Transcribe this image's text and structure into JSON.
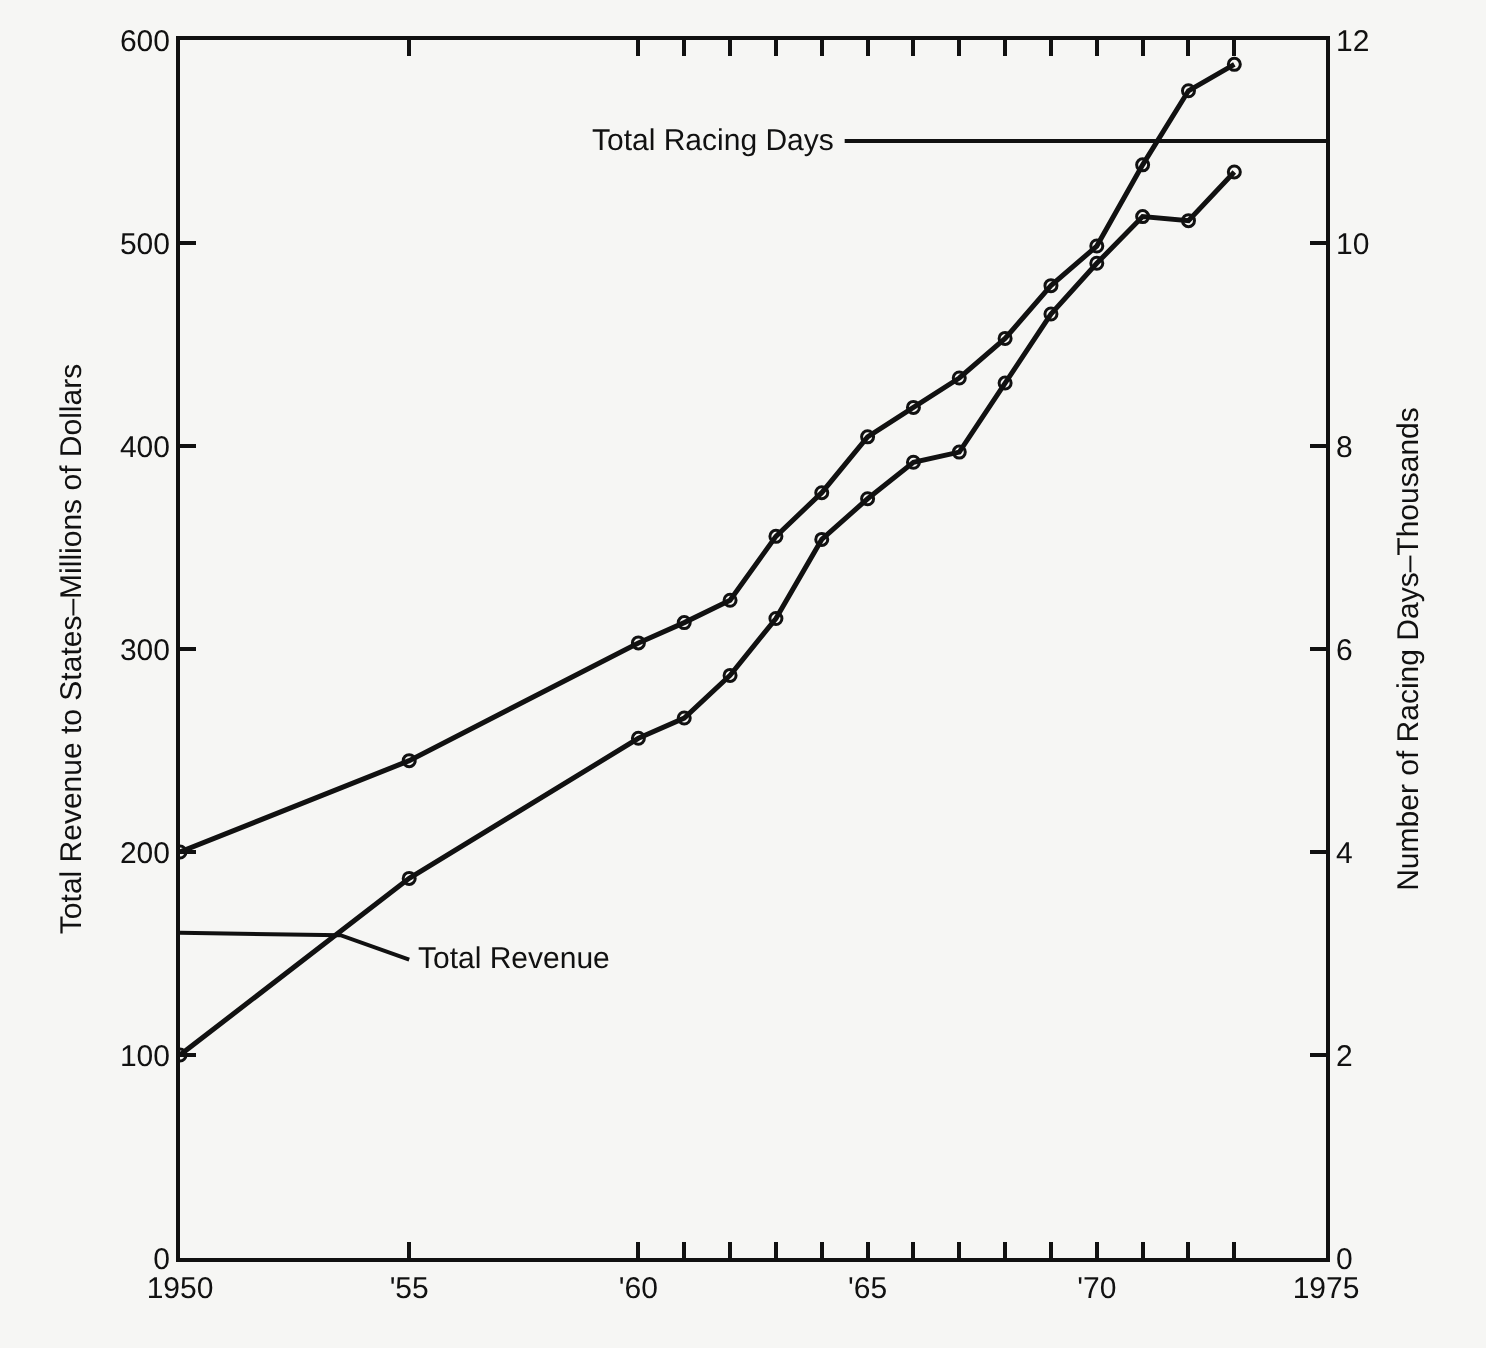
{
  "chart_data": {
    "type": "line",
    "ylabel": "Total Revenue to States–Millions of Dollars",
    "y2label": "Number of Racing Days–Thousands",
    "x": [
      1950,
      1955,
      1960,
      1961,
      1962,
      1963,
      1964,
      1965,
      1966,
      1967,
      1968,
      1969,
      1970,
      1971,
      1972,
      1973
    ],
    "series": [
      {
        "color": "#111111",
        "values": [
          100,
          187,
          256,
          266,
          287,
          315,
          354,
          374,
          392,
          397,
          431,
          465,
          490,
          513,
          511,
          535
        ]
      },
      {
        "color": "#111111",
        "axis": "y2",
        "values": [
          4.0,
          4.9,
          6.06,
          6.26,
          6.48,
          7.11,
          7.54,
          8.09,
          8.38,
          8.67,
          9.06,
          9.58,
          9.97,
          10.77,
          11.5,
          11.76
        ]
      }
    ],
    "annotations": [
      "Total Revenue",
      "Total Racing Days"
    ],
    "xlim": [
      1950,
      1975
    ],
    "xticks": [
      1950,
      {
        "value": 1955,
        "label": "'55"
      },
      {
        "value": 1960,
        "label": "'60"
      },
      {
        "value": 1961,
        "label": null
      },
      {
        "value": 1962,
        "label": null
      },
      {
        "value": 1963,
        "label": null
      },
      {
        "value": 1964,
        "label": null
      },
      {
        "value": 1965,
        "label": "'65"
      },
      {
        "value": 1966,
        "label": null
      },
      {
        "value": 1967,
        "label": null
      },
      {
        "value": 1968,
        "label": null
      },
      {
        "value": 1969,
        "label": null
      },
      {
        "value": 1970,
        "label": "'70"
      },
      {
        "value": 1971,
        "label": null
      },
      {
        "value": 1972,
        "label": null
      },
      {
        "value": 1973,
        "label": null
      },
      1975
    ],
    "ylim": [
      0,
      600
    ],
    "yticks": [
      0,
      100,
      200,
      300,
      400,
      500,
      600
    ],
    "y2lim": [
      0,
      12
    ],
    "y2ticks": [
      0,
      2,
      4,
      6,
      8,
      10,
      12
    ],
    "grid": false,
    "legend": false,
    "marker": "circle",
    "line_style": "solid"
  }
}
